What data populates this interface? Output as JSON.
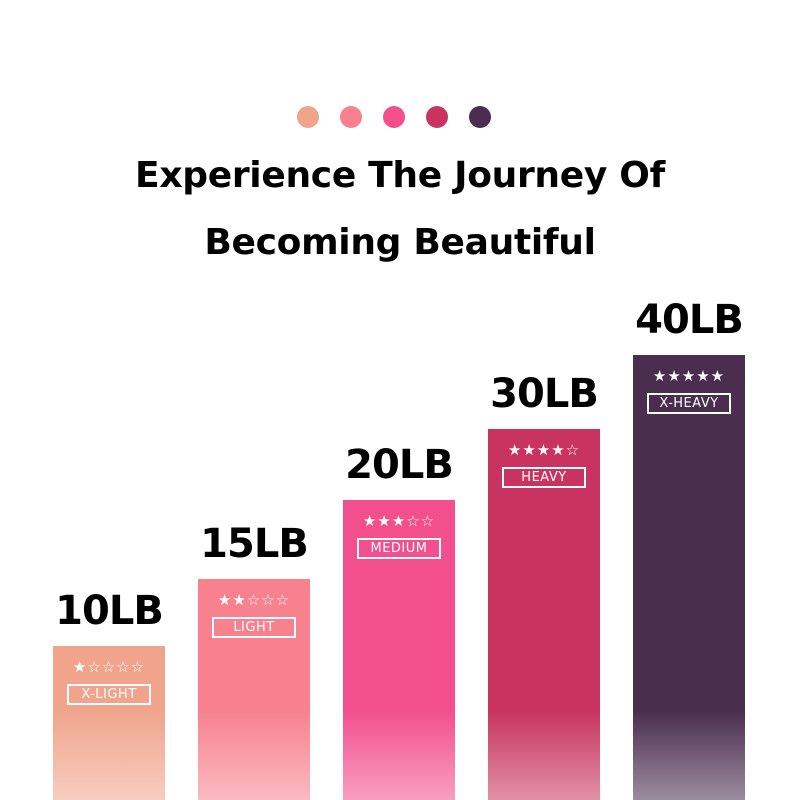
{
  "header": {
    "dot_colors": [
      "#f0a48c",
      "#f7818e",
      "#f24f8c",
      "#c8345f",
      "#4a2d4f"
    ],
    "title_line1": "Experience The Journey Of",
    "title_line2": "Becoming Beautiful"
  },
  "chart_data": {
    "type": "bar",
    "categories": [
      "10LB",
      "15LB",
      "20LB",
      "30LB",
      "40LB"
    ],
    "values": [
      10,
      15,
      20,
      30,
      40
    ],
    "unit": "LB",
    "levels": [
      "X-LIGHT",
      "LIGHT",
      "MEDIUM",
      "HEAVY",
      "X-HEAVY"
    ],
    "star_ratings": [
      1,
      2,
      3,
      4,
      5
    ],
    "star_max": 5,
    "colors": [
      "#f0a48c",
      "#f7818e",
      "#f24f8c",
      "#c8345f",
      "#4a2d4f"
    ],
    "title": "",
    "xlabel": "",
    "ylabel": ""
  }
}
